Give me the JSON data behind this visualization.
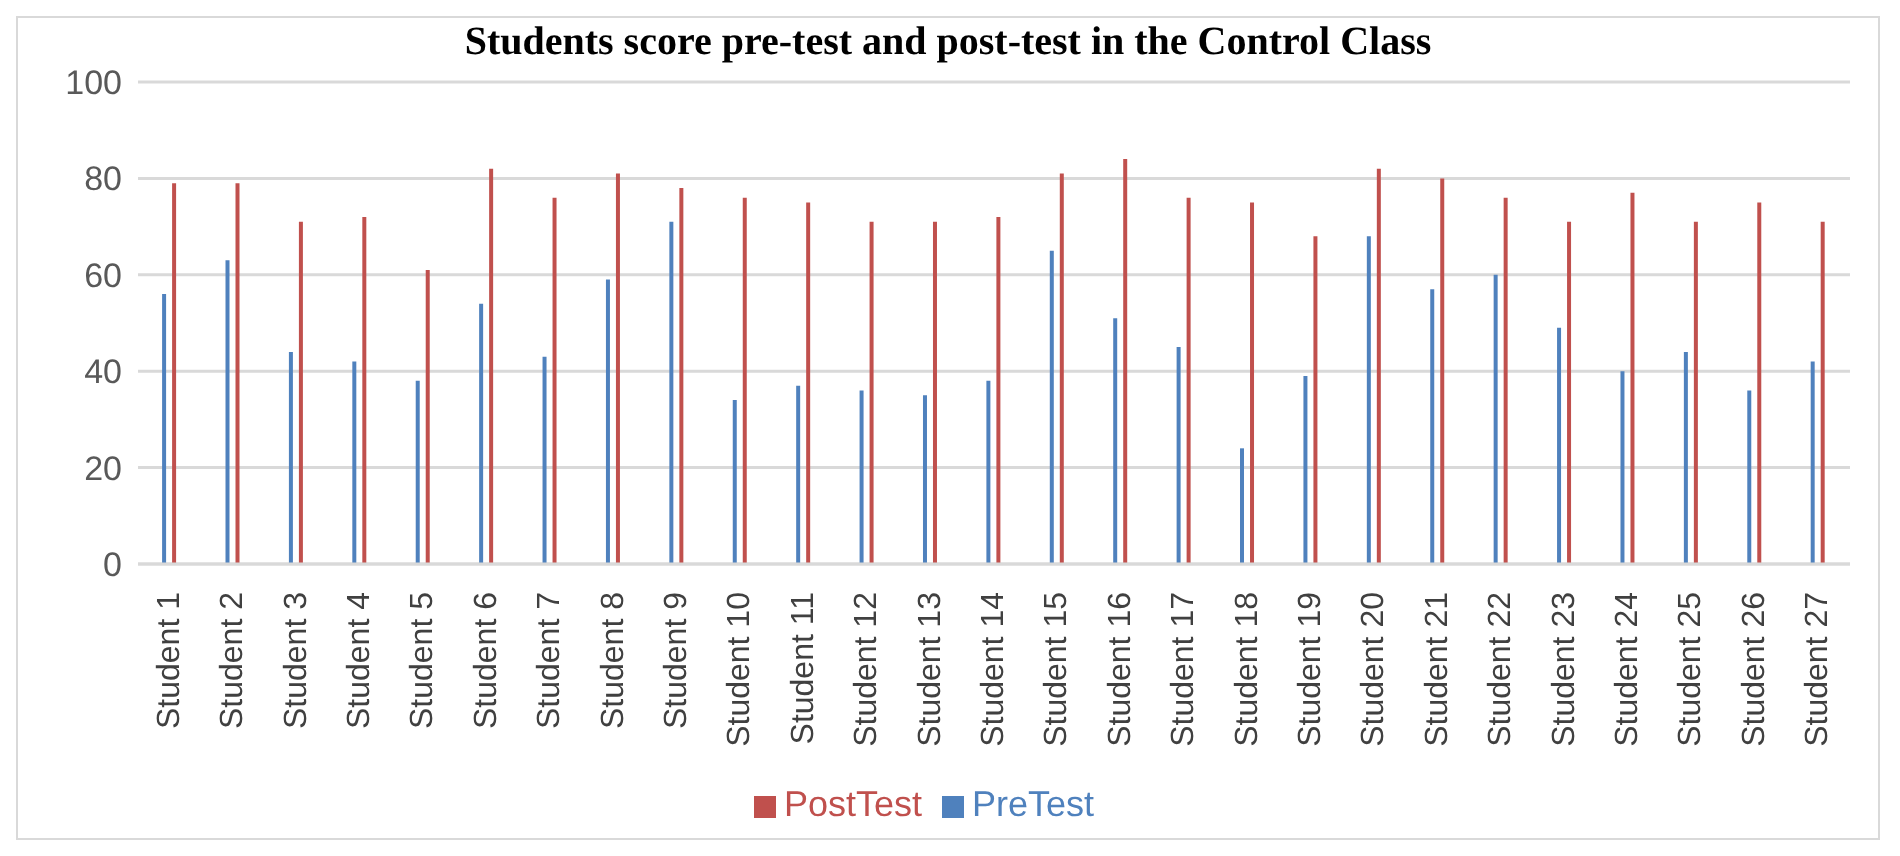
{
  "chart_data": {
    "type": "bar",
    "title": "Students score pre-test and post-test in the Control Class",
    "categories": [
      "Student 1",
      "Student 2",
      "Student 3",
      "Student 4",
      "Student 5",
      "Student 6",
      "Student 7",
      "Student 8",
      "Student 9",
      "Student 10",
      "Student 11",
      "Student 12",
      "Student 13",
      "Student 14",
      "Student 15",
      "Student 16",
      "Student 17",
      "Student 18",
      "Student 19",
      "Student 20",
      "Student 21",
      "Student 22",
      "Student 23",
      "Student 24",
      "Student 25",
      "Student 26",
      "Student 27"
    ],
    "series": [
      {
        "name": "PreTest",
        "color": "#4f81bd",
        "values": [
          56,
          63,
          44,
          42,
          38,
          54,
          43,
          59,
          71,
          34,
          37,
          36,
          35,
          38,
          65,
          51,
          45,
          24,
          39,
          68,
          57,
          60,
          49,
          40,
          44,
          36,
          42
        ]
      },
      {
        "name": "PostTest",
        "color": "#c0504d",
        "values": [
          79,
          79,
          71,
          72,
          61,
          82,
          76,
          81,
          78,
          76,
          75,
          71,
          71,
          72,
          81,
          84,
          76,
          75,
          68,
          82,
          80,
          76,
          71,
          77,
          71,
          75,
          71
        ]
      }
    ],
    "ylim": [
      0,
      100
    ],
    "yticks": [
      0,
      20,
      40,
      60,
      80,
      100
    ],
    "grid": "y",
    "legend": "bottom"
  }
}
